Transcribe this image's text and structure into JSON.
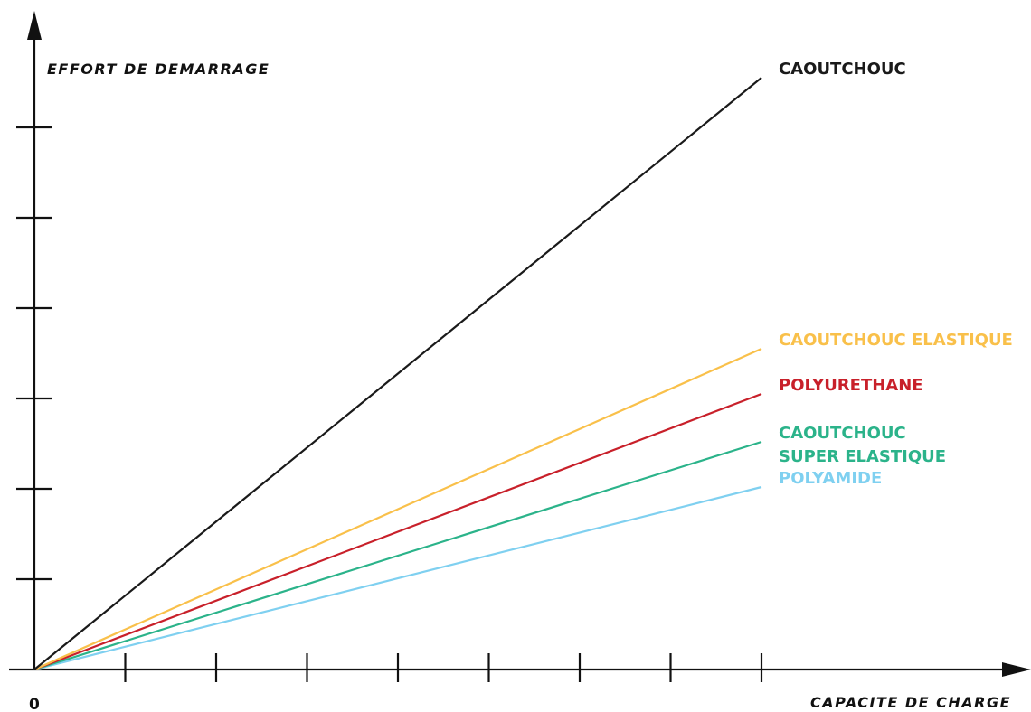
{
  "chart_data": {
    "type": "line",
    "xlabel": "CAPACITE DE CHARGE",
    "ylabel": "EFFORT DE DEMARRAGE",
    "origin_label": "0",
    "x": [
      0,
      8
    ],
    "xlim": [
      0,
      8
    ],
    "ylim": [
      0,
      7
    ],
    "x_ticks": 8,
    "y_ticks": 6,
    "grid": false,
    "series": [
      {
        "name": "CAOUTCHOUC",
        "lines": [
          "CAOUTCHOUC"
        ],
        "values": [
          0,
          6.55
        ],
        "color": "#1a1a1a"
      },
      {
        "name": "CAOUTCHOUC ELASTIQUE",
        "lines": [
          "CAOUTCHOUC  ELASTIQUE"
        ],
        "values": [
          0,
          3.55
        ],
        "color": "#f9c04a"
      },
      {
        "name": "POLYURETHANE",
        "lines": [
          "POLYURETHANE"
        ],
        "values": [
          0,
          3.05
        ],
        "color": "#c8202a"
      },
      {
        "name": "CAOUTCHOUC SUPER ELASTIQUE",
        "lines": [
          "CAOUTCHOUC",
          "SUPER  ELASTIQUE"
        ],
        "values": [
          0,
          2.52
        ],
        "color": "#2bb38a"
      },
      {
        "name": "POLYAMIDE",
        "lines": [
          "POLYAMIDE"
        ],
        "values": [
          0,
          2.02
        ],
        "color": "#7fd0f0"
      }
    ]
  }
}
